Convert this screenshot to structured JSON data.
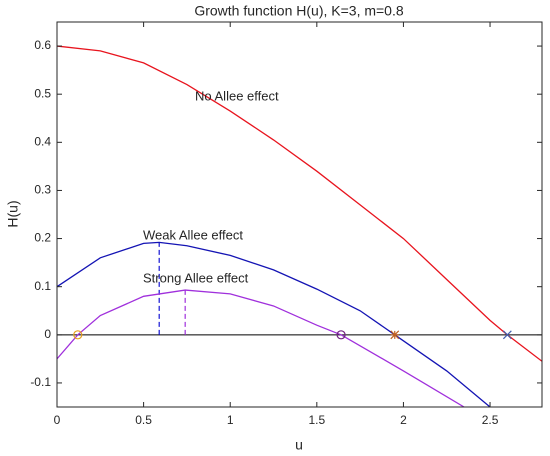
{
  "chart_data": {
    "type": "line",
    "title": "Growth function H(u), K=3, m=0.8",
    "xlabel": "u",
    "ylabel": "H(u)",
    "xlim": [
      0,
      2.8
    ],
    "ylim": [
      -0.15,
      0.65
    ],
    "xticks": [
      0,
      0.5,
      1,
      1.5,
      2,
      2.5
    ],
    "yticks": [
      -0.1,
      0,
      0.1,
      0.2,
      0.3,
      0.4,
      0.5,
      0.6
    ],
    "grid": false,
    "series": [
      {
        "name": "No Allee effect",
        "color": "#e8141e",
        "x": [
          0,
          0.25,
          0.5,
          0.75,
          1,
          1.25,
          1.5,
          1.75,
          2,
          2.25,
          2.5,
          2.6,
          2.8
        ],
        "values": [
          0.6,
          0.59,
          0.565,
          0.52,
          0.465,
          0.405,
          0.34,
          0.27,
          0.2,
          0.115,
          0.03,
          0,
          -0.055
        ]
      },
      {
        "name": "Weak Allee effect",
        "color": "#1414b4",
        "x": [
          0,
          0.25,
          0.5,
          0.59,
          0.75,
          1,
          1.25,
          1.5,
          1.75,
          1.95,
          2.25,
          2.5
        ],
        "values": [
          0.1,
          0.16,
          0.19,
          0.192,
          0.185,
          0.165,
          0.135,
          0.095,
          0.05,
          0,
          -0.075,
          -0.15
        ]
      },
      {
        "name": "Strong Allee effect",
        "color": "#a030dc",
        "x": [
          0,
          0.12,
          0.25,
          0.5,
          0.74,
          1,
          1.25,
          1.5,
          1.64,
          2,
          2.35
        ],
        "values": [
          -0.05,
          0,
          0.04,
          0.08,
          0.093,
          0.085,
          0.06,
          0.02,
          0,
          -0.075,
          -0.15
        ]
      }
    ],
    "points": [
      {
        "x": 0.12,
        "y": 0,
        "color": "#e8a020",
        "symbol": "circle"
      },
      {
        "x": 1.64,
        "y": 0,
        "color": "#702080",
        "symbol": "circle"
      },
      {
        "x": 1.95,
        "y": 0,
        "color": "#c06020",
        "symbol": "star"
      },
      {
        "x": 2.6,
        "y": 0,
        "color": "#4060b0",
        "symbol": "cross"
      }
    ],
    "drops": [
      {
        "x": 0.59,
        "y": 0.192,
        "color": "#1414d4"
      },
      {
        "x": 0.74,
        "y": 0.093,
        "color": "#a030dc"
      }
    ]
  }
}
